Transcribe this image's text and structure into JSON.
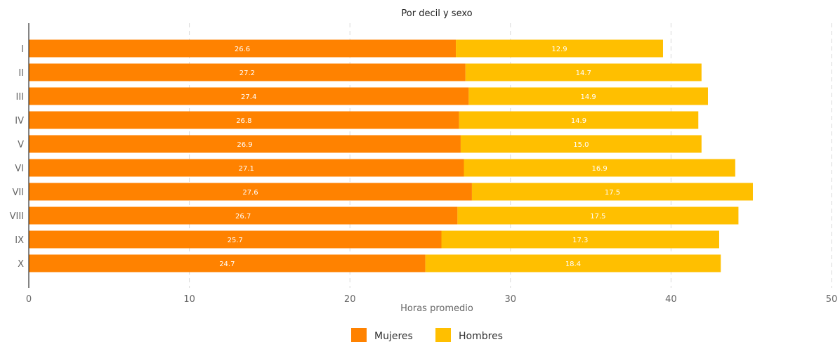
{
  "chart_data": {
    "type": "bar",
    "orientation": "horizontal",
    "stacked": true,
    "title": "Por decil y sexo",
    "xlabel": "Horas promedio",
    "ylabel": "",
    "xlim": [
      0,
      50
    ],
    "xticks": [
      0,
      10,
      20,
      30,
      40,
      50
    ],
    "grid": "vertical dashed",
    "legend_position": "bottom-center",
    "categories": [
      "I",
      "II",
      "III",
      "IV",
      "V",
      "VI",
      "VII",
      "VIII",
      "IX",
      "X"
    ],
    "series": [
      {
        "name": "Mujeres",
        "color": "#FF8200",
        "values": [
          26.6,
          27.2,
          27.4,
          26.8,
          26.9,
          27.1,
          27.6,
          26.7,
          25.7,
          24.7
        ]
      },
      {
        "name": "Hombres",
        "color": "#FFBF00",
        "values": [
          12.9,
          14.7,
          14.9,
          14.9,
          15.0,
          16.9,
          17.5,
          17.5,
          17.3,
          18.4
        ]
      }
    ],
    "value_labels": [
      [
        "26.6",
        "27.2",
        "27.4",
        "26.8",
        "26.9",
        "27.1",
        "27.6",
        "26.7",
        "25.7",
        "24.7"
      ],
      [
        "12.9",
        "14.7",
        "14.9",
        "14.9",
        "15.0",
        "16.9",
        "17.5",
        "17.5",
        "17.3",
        "18.4"
      ]
    ]
  }
}
